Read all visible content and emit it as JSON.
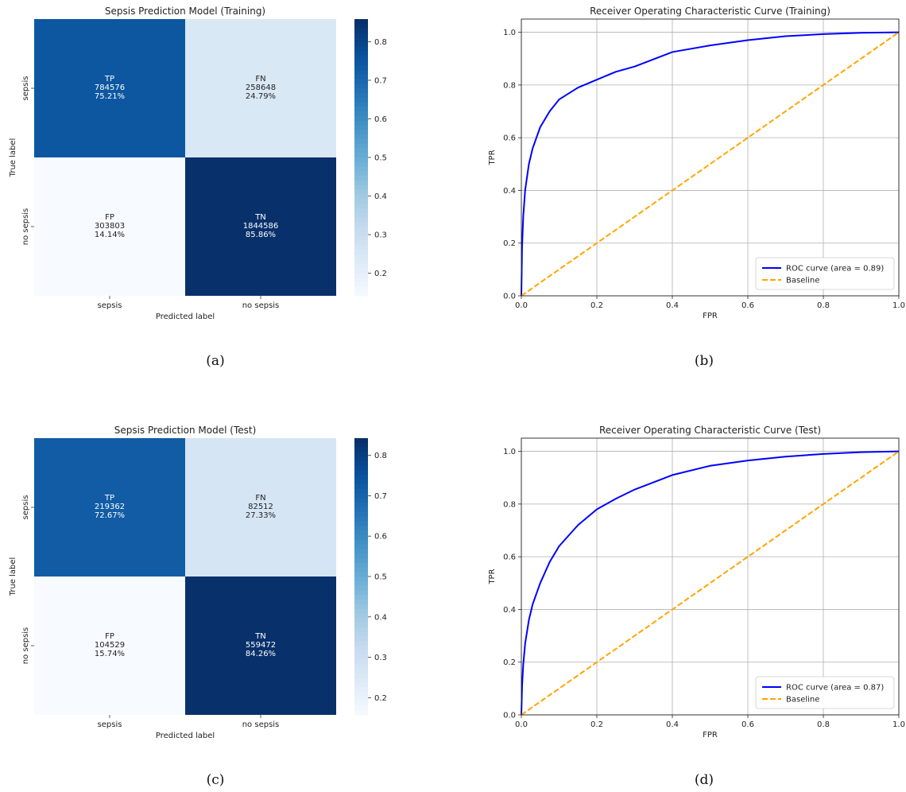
{
  "chart_data": [
    {
      "type": "heatmap",
      "panel": "(a)",
      "title": "Sepsis Prediction Model (Training)",
      "xlabel": "Predicted label",
      "ylabel": "True label",
      "x_categories": [
        "sepsis",
        "no sepsis"
      ],
      "y_categories": [
        "sepsis",
        "no sepsis"
      ],
      "cells": [
        [
          {
            "label": "TP",
            "count": "784576",
            "percent": "75.21%",
            "value": 0.7521
          },
          {
            "label": "FN",
            "count": "258648",
            "percent": "24.79%",
            "value": 0.2479
          }
        ],
        [
          {
            "label": "FP",
            "count": "303803",
            "percent": "14.14%",
            "value": 0.1414
          },
          {
            "label": "TN",
            "count": "1844586",
            "percent": "85.86%",
            "value": 0.8586
          }
        ]
      ],
      "colorbar_range": [
        0.1414,
        0.8586
      ],
      "colorbar_ticks": [
        0.2,
        0.3,
        0.4,
        0.5,
        0.6,
        0.7,
        0.8
      ],
      "colormap": "Blues"
    },
    {
      "type": "line",
      "panel": "(b)",
      "title": "Receiver Operating Characteristic Curve (Training)",
      "xlabel": "FPR",
      "ylabel": "TPR",
      "xlim": [
        0,
        1
      ],
      "ylim": [
        0,
        1.05
      ],
      "xticks": [
        0.0,
        0.2,
        0.4,
        0.6,
        0.8,
        1.0
      ],
      "yticks": [
        0.0,
        0.2,
        0.4,
        0.6,
        0.8,
        1.0
      ],
      "grid": true,
      "legend_position": "lower-right",
      "series": [
        {
          "name": "ROC curve (area = 0.89)",
          "color": "#0000ff",
          "style": "solid",
          "x": [
            0,
            0.002,
            0.005,
            0.01,
            0.02,
            0.03,
            0.05,
            0.075,
            0.1,
            0.15,
            0.2,
            0.25,
            0.3,
            0.4,
            0.5,
            0.6,
            0.7,
            0.8,
            0.9,
            1.0
          ],
          "y": [
            0,
            0.19,
            0.3,
            0.4,
            0.5,
            0.56,
            0.64,
            0.7,
            0.745,
            0.79,
            0.82,
            0.85,
            0.87,
            0.925,
            0.95,
            0.97,
            0.985,
            0.993,
            0.998,
            1.0
          ]
        },
        {
          "name": "Baseline",
          "color": "#ffa500",
          "style": "dashed",
          "x": [
            0,
            1
          ],
          "y": [
            0,
            1
          ]
        }
      ]
    },
    {
      "type": "heatmap",
      "panel": "(c)",
      "title": "Sepsis Prediction Model (Test)",
      "xlabel": "Predicted label",
      "ylabel": "True label",
      "x_categories": [
        "sepsis",
        "no sepsis"
      ],
      "y_categories": [
        "sepsis",
        "no sepsis"
      ],
      "cells": [
        [
          {
            "label": "TP",
            "count": "219362",
            "percent": "72.67%",
            "value": 0.7267
          },
          {
            "label": "FN",
            "count": "82512",
            "percent": "27.33%",
            "value": 0.2733
          }
        ],
        [
          {
            "label": "FP",
            "count": "104529",
            "percent": "15.74%",
            "value": 0.1574
          },
          {
            "label": "TN",
            "count": "559472",
            "percent": "84.26%",
            "value": 0.8426
          }
        ]
      ],
      "colorbar_range": [
        0.1574,
        0.8426
      ],
      "colorbar_ticks": [
        0.2,
        0.3,
        0.4,
        0.5,
        0.6,
        0.7,
        0.8
      ],
      "colormap": "Blues"
    },
    {
      "type": "line",
      "panel": "(d)",
      "title": "Receiver Operating Characteristic Curve (Test)",
      "xlabel": "FPR",
      "ylabel": "TPR",
      "xlim": [
        0,
        1
      ],
      "ylim": [
        0,
        1.05
      ],
      "xticks": [
        0.0,
        0.2,
        0.4,
        0.6,
        0.8,
        1.0
      ],
      "yticks": [
        0.0,
        0.2,
        0.4,
        0.6,
        0.8,
        1.0
      ],
      "grid": true,
      "legend_position": "lower-right",
      "series": [
        {
          "name": "ROC curve (area = 0.87)",
          "color": "#0000ff",
          "style": "solid",
          "x": [
            0,
            0.002,
            0.005,
            0.01,
            0.02,
            0.03,
            0.05,
            0.075,
            0.1,
            0.15,
            0.2,
            0.25,
            0.3,
            0.4,
            0.5,
            0.6,
            0.7,
            0.8,
            0.9,
            1.0
          ],
          "y": [
            0,
            0.11,
            0.19,
            0.27,
            0.36,
            0.42,
            0.5,
            0.58,
            0.64,
            0.72,
            0.78,
            0.82,
            0.855,
            0.91,
            0.945,
            0.965,
            0.98,
            0.99,
            0.997,
            1.0
          ]
        },
        {
          "name": "Baseline",
          "color": "#ffa500",
          "style": "dashed",
          "x": [
            0,
            1
          ],
          "y": [
            0,
            1
          ]
        }
      ]
    }
  ],
  "captions": [
    "(a)",
    "(b)",
    "(c)",
    "(d)"
  ]
}
